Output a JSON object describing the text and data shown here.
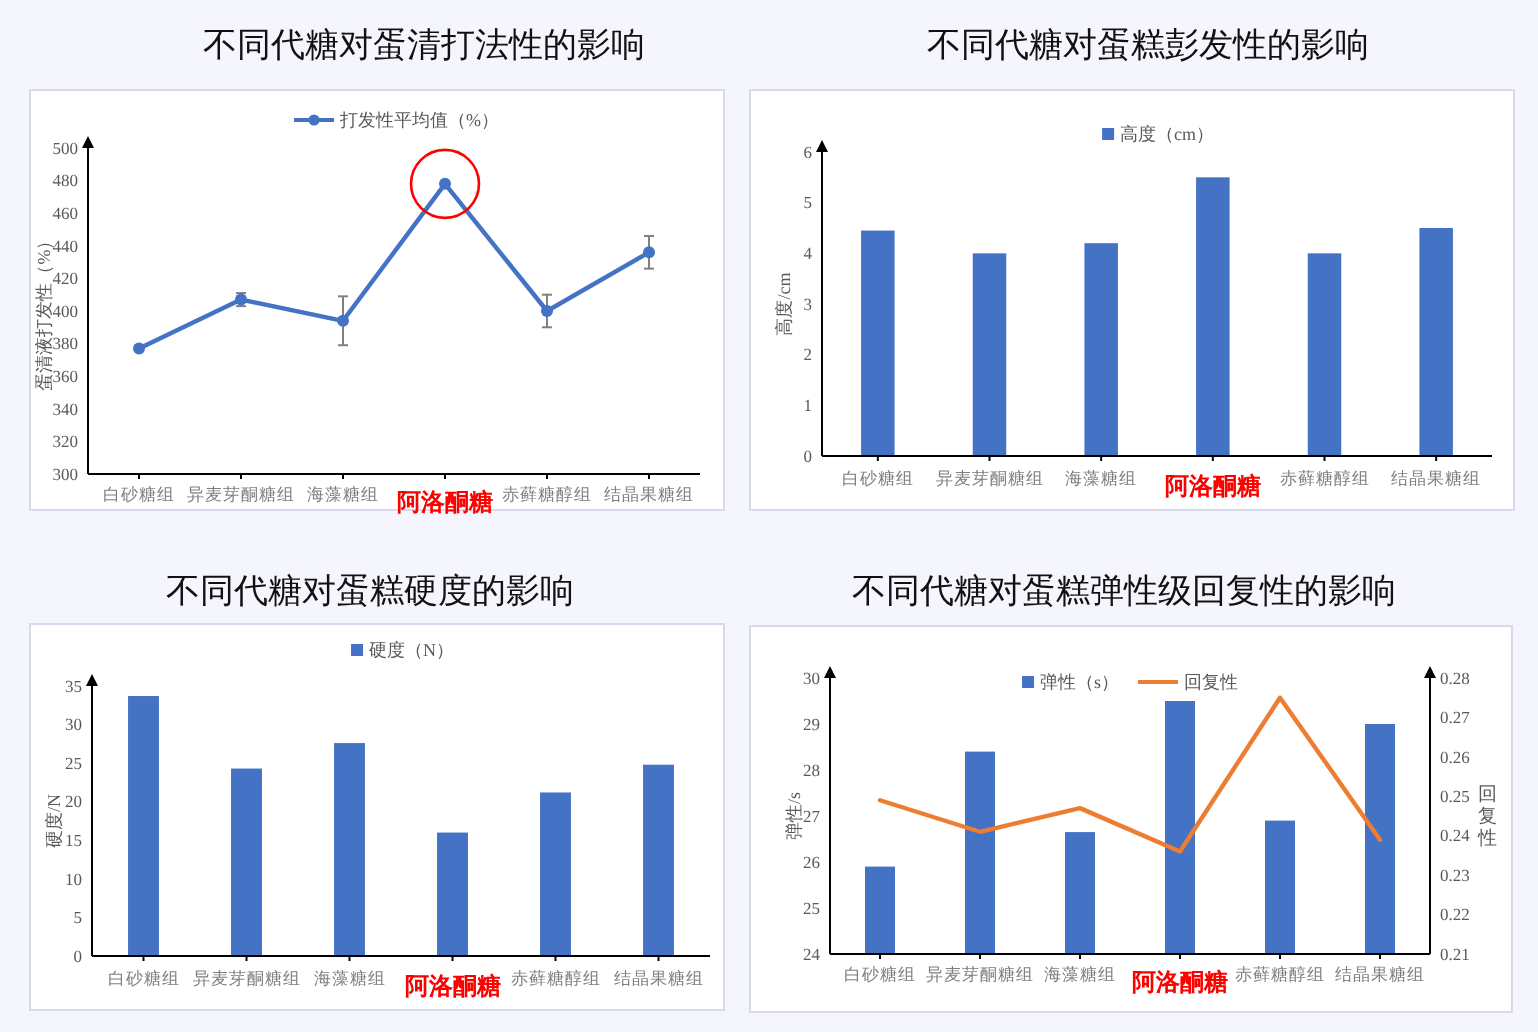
{
  "chart_data": [
    {
      "type": "line",
      "title": "不同代糖对蛋清打法性的影响",
      "ylabel": "蛋清液打发性（%）",
      "categories": [
        "白砂糖组",
        "异麦芽酮糖组",
        "海藻糖组",
        "阿洛酮糖",
        "赤藓糖醇组",
        "结晶果糖组"
      ],
      "series": [
        {
          "name": "打发性平均值（%）",
          "color": "#4472c4",
          "values": [
            377,
            407,
            394,
            478,
            400,
            436
          ],
          "errors": [
            null,
            4,
            15,
            null,
            10,
            10
          ]
        }
      ],
      "ylim": [
        300,
        500
      ],
      "yticks": [
        300,
        320,
        340,
        360,
        380,
        400,
        420,
        440,
        460,
        480,
        500
      ],
      "legend": "top",
      "marker": "circle"
    },
    {
      "type": "bar",
      "title": "不同代糖对蛋糕彭发性的影响",
      "ylabel": "高度/cm",
      "categories": [
        "白砂糖组",
        "异麦芽酮糖组",
        "海藻糖组",
        "阿洛酮糖",
        "赤藓糖醇组",
        "结晶果糖组"
      ],
      "series": [
        {
          "name": "高度（cm）",
          "color": "#4472c4",
          "values": [
            4.45,
            4.0,
            4.2,
            5.5,
            4.0,
            4.5
          ]
        }
      ],
      "ylim": [
        0,
        6
      ],
      "yticks": [
        0,
        1,
        2,
        3,
        4,
        5,
        6
      ],
      "legend": "top"
    },
    {
      "type": "bar",
      "title": "不同代糖对蛋糕硬度的影响",
      "ylabel": "硬度/N",
      "categories": [
        "白砂糖组",
        "异麦芽酮糖组",
        "海藻糖组",
        "阿洛酮糖",
        "赤藓糖醇组",
        "结晶果糖组"
      ],
      "series": [
        {
          "name": "硬度（N）",
          "color": "#4472c4",
          "values": [
            33.7,
            24.3,
            27.6,
            16.0,
            21.2,
            24.8
          ]
        }
      ],
      "ylim": [
        0,
        35
      ],
      "yticks": [
        0,
        5,
        10,
        15,
        20,
        25,
        30,
        35
      ],
      "legend": "top"
    },
    {
      "type": "bar",
      "title": "不同代糖对蛋糕弹性级回复性的影响",
      "ylabel": "弹性/s",
      "y2label": "回复性",
      "categories": [
        "白砂糖组",
        "异麦芽酮糖组",
        "海藻糖组",
        "阿洛酮糖",
        "赤藓糖醇组",
        "结晶果糖组"
      ],
      "series": [
        {
          "name": "弹性（s）",
          "color": "#4472c4",
          "values": [
            25.9,
            28.4,
            26.65,
            29.5,
            26.9,
            29.0
          ]
        },
        {
          "name": "回复性",
          "type": "line",
          "axis": "y2",
          "color": "#ed7d31",
          "values": [
            0.249,
            0.241,
            0.247,
            0.236,
            0.275,
            0.239
          ]
        }
      ],
      "ylim": [
        24,
        30
      ],
      "yticks": [
        24,
        25,
        26,
        27,
        28,
        29,
        30
      ],
      "y2lim": [
        0.21,
        0.28
      ],
      "y2ticks": [
        0.21,
        0.22,
        0.23,
        0.24,
        0.25,
        0.26,
        0.27,
        0.28
      ],
      "legend": "top"
    }
  ]
}
